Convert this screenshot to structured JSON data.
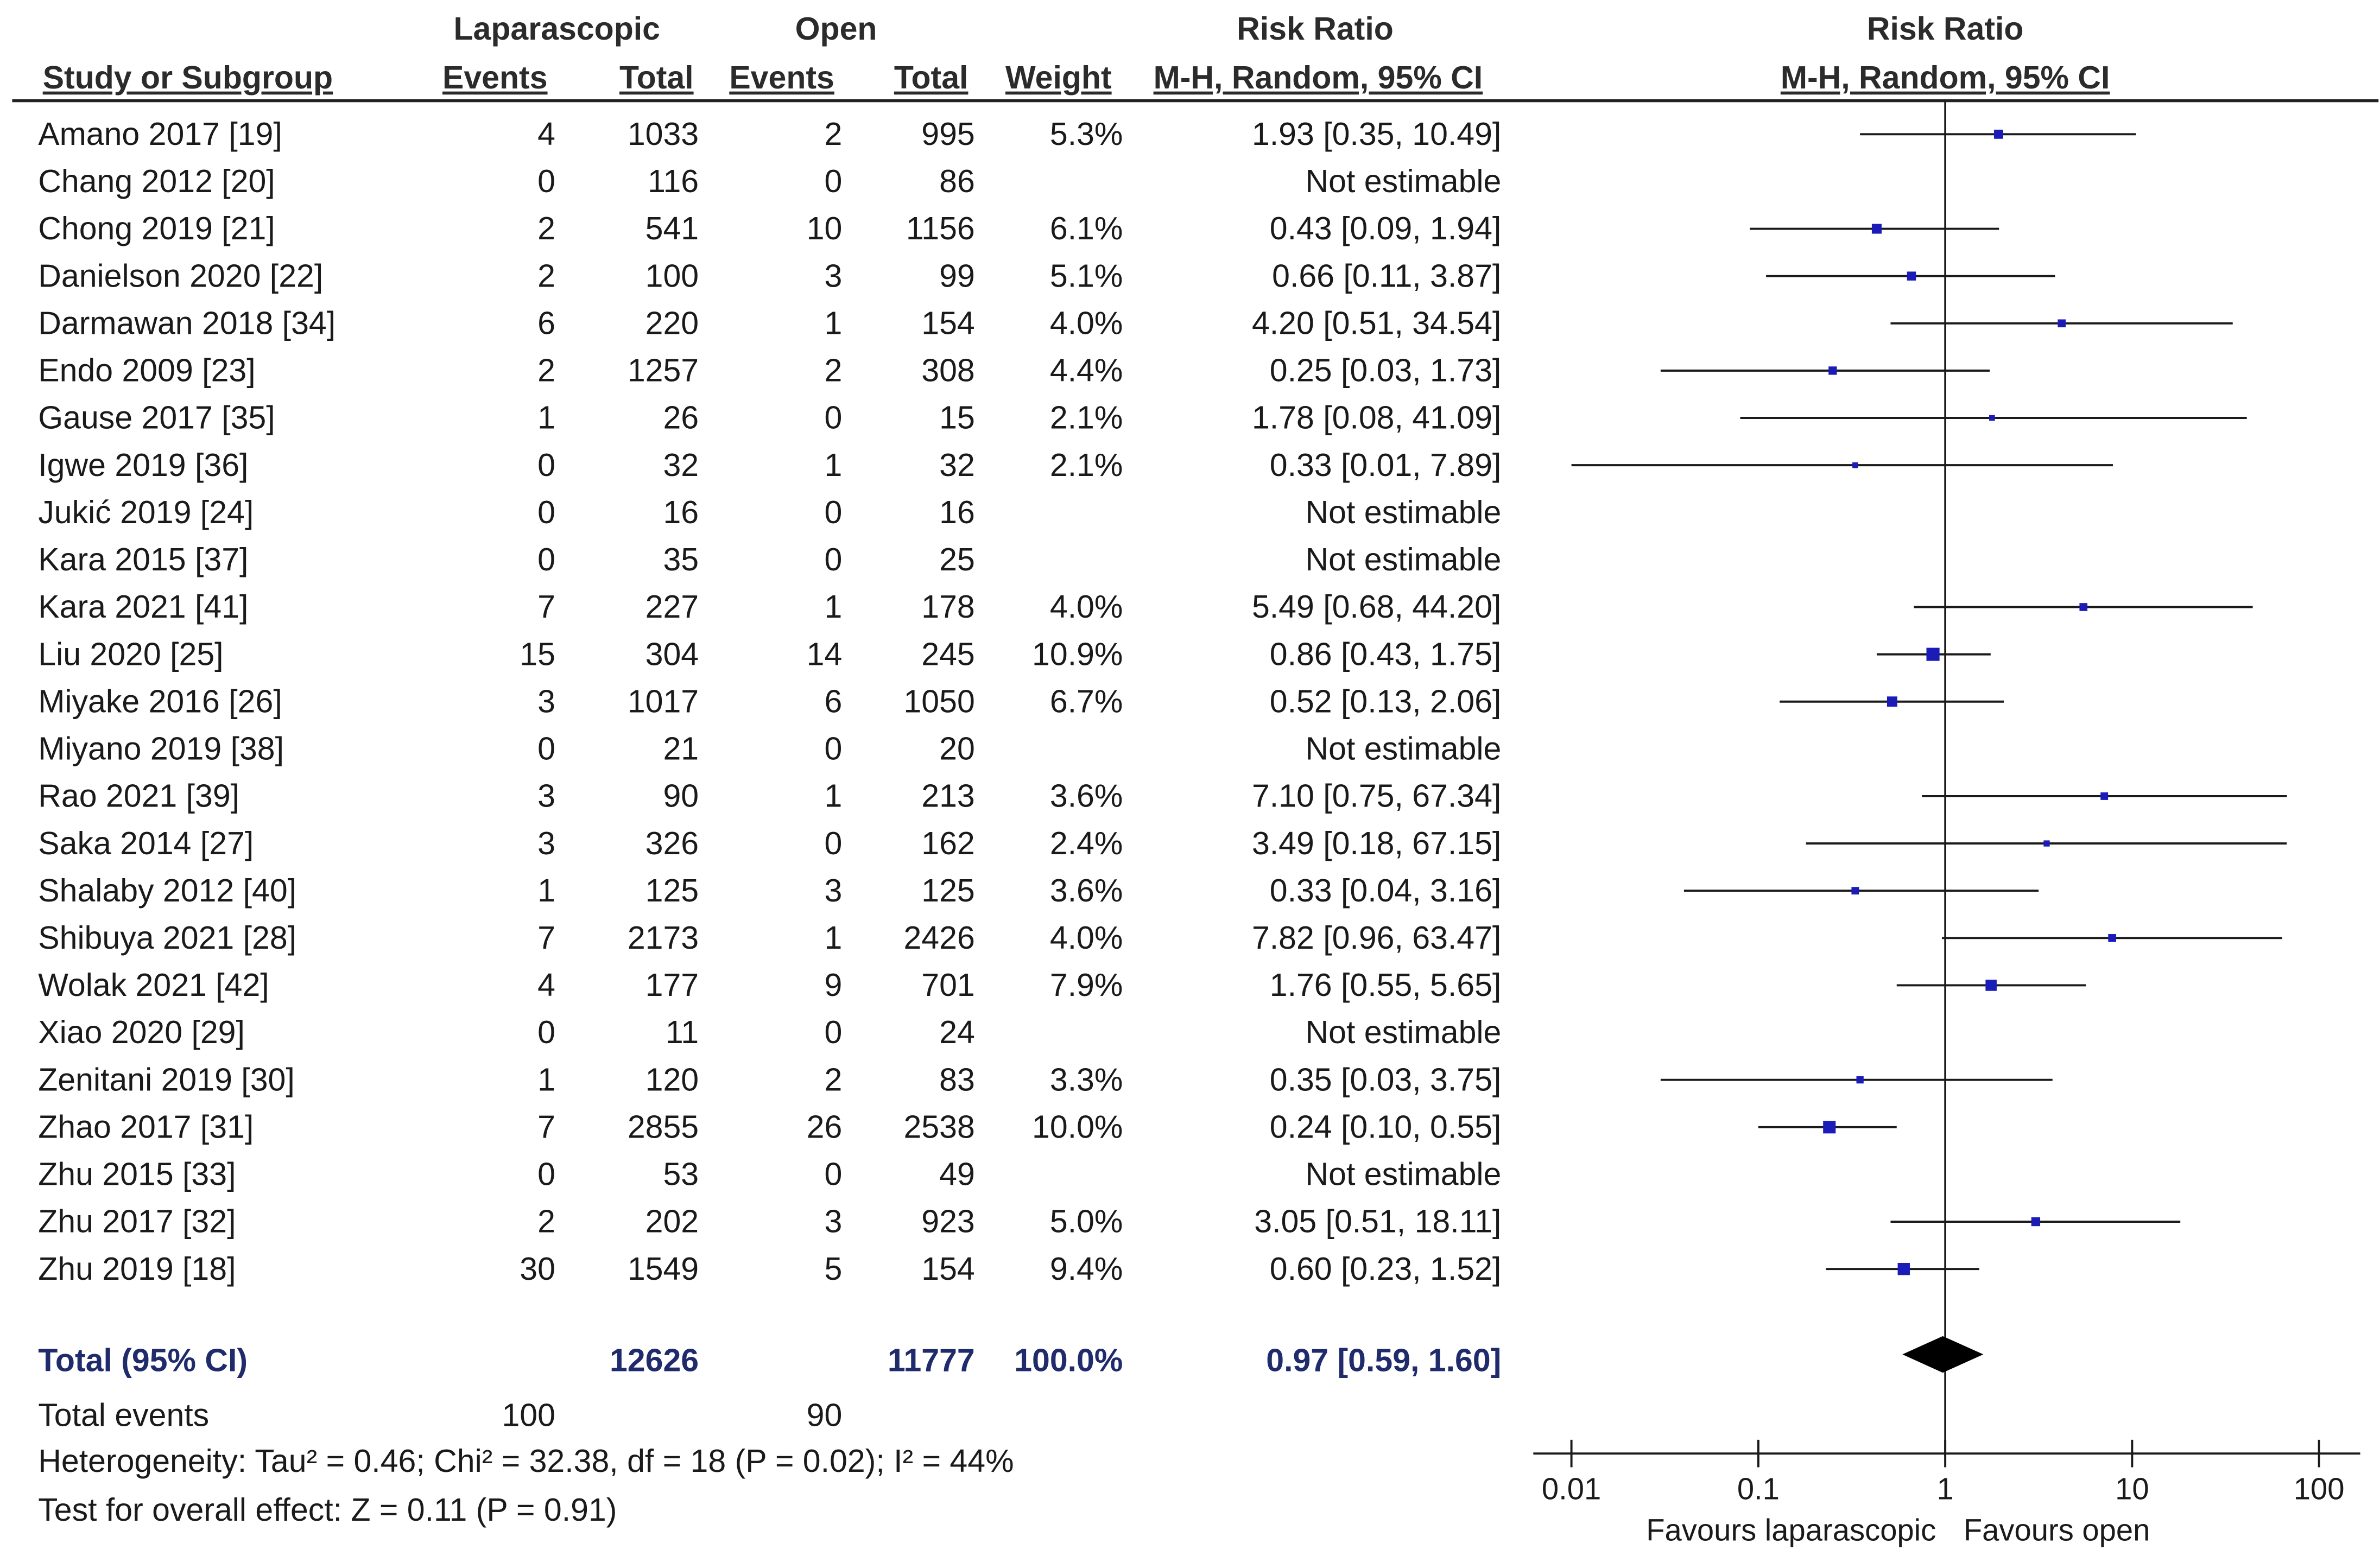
{
  "headers": {
    "study": "Study or Subgroup",
    "group1": "Laparascopic",
    "group2": "Open",
    "events": "Events",
    "total": "Total",
    "weight": "Weight",
    "rr_title": "Risk Ratio",
    "rr_method": "M-H, Random, 95% CI"
  },
  "studies": [
    {
      "study": "Amano 2017 [19]",
      "le": "4",
      "lt": "1033",
      "oe": "2",
      "ot": "995",
      "weight": "5.3%",
      "rr": "1.93 [0.35, 10.49]"
    },
    {
      "study": "Chang 2012 [20]",
      "le": "0",
      "lt": "116",
      "oe": "0",
      "ot": "86",
      "weight": "",
      "rr": "Not estimable"
    },
    {
      "study": "Chong 2019 [21]",
      "le": "2",
      "lt": "541",
      "oe": "10",
      "ot": "1156",
      "weight": "6.1%",
      "rr": "0.43 [0.09, 1.94]"
    },
    {
      "study": "Danielson 2020 [22]",
      "le": "2",
      "lt": "100",
      "oe": "3",
      "ot": "99",
      "weight": "5.1%",
      "rr": "0.66 [0.11, 3.87]"
    },
    {
      "study": "Darmawan 2018 [34]",
      "le": "6",
      "lt": "220",
      "oe": "1",
      "ot": "154",
      "weight": "4.0%",
      "rr": "4.20 [0.51, 34.54]"
    },
    {
      "study": "Endo 2009 [23]",
      "le": "2",
      "lt": "1257",
      "oe": "2",
      "ot": "308",
      "weight": "4.4%",
      "rr": "0.25 [0.03, 1.73]"
    },
    {
      "study": "Gause 2017 [35]",
      "le": "1",
      "lt": "26",
      "oe": "0",
      "ot": "15",
      "weight": "2.1%",
      "rr": "1.78 [0.08, 41.09]"
    },
    {
      "study": "Igwe 2019 [36]",
      "le": "0",
      "lt": "32",
      "oe": "1",
      "ot": "32",
      "weight": "2.1%",
      "rr": "0.33 [0.01, 7.89]"
    },
    {
      "study": "Jukić 2019 [24]",
      "le": "0",
      "lt": "16",
      "oe": "0",
      "ot": "16",
      "weight": "",
      "rr": "Not estimable"
    },
    {
      "study": "Kara 2015 [37]",
      "le": "0",
      "lt": "35",
      "oe": "0",
      "ot": "25",
      "weight": "",
      "rr": "Not estimable"
    },
    {
      "study": "Kara 2021 [41]",
      "le": "7",
      "lt": "227",
      "oe": "1",
      "ot": "178",
      "weight": "4.0%",
      "rr": "5.49 [0.68, 44.20]"
    },
    {
      "study": "Liu 2020 [25]",
      "le": "15",
      "lt": "304",
      "oe": "14",
      "ot": "245",
      "weight": "10.9%",
      "rr": "0.86 [0.43, 1.75]"
    },
    {
      "study": "Miyake 2016 [26]",
      "le": "3",
      "lt": "1017",
      "oe": "6",
      "ot": "1050",
      "weight": "6.7%",
      "rr": "0.52 [0.13, 2.06]"
    },
    {
      "study": "Miyano 2019 [38]",
      "le": "0",
      "lt": "21",
      "oe": "0",
      "ot": "20",
      "weight": "",
      "rr": "Not estimable"
    },
    {
      "study": "Rao 2021 [39]",
      "le": "3",
      "lt": "90",
      "oe": "1",
      "ot": "213",
      "weight": "3.6%",
      "rr": "7.10 [0.75, 67.34]"
    },
    {
      "study": "Saka 2014 [27]",
      "le": "3",
      "lt": "326",
      "oe": "0",
      "ot": "162",
      "weight": "2.4%",
      "rr": "3.49 [0.18, 67.15]"
    },
    {
      "study": "Shalaby 2012 [40]",
      "le": "1",
      "lt": "125",
      "oe": "3",
      "ot": "125",
      "weight": "3.6%",
      "rr": "0.33 [0.04, 3.16]"
    },
    {
      "study": "Shibuya 2021 [28]",
      "le": "7",
      "lt": "2173",
      "oe": "1",
      "ot": "2426",
      "weight": "4.0%",
      "rr": "7.82 [0.96, 63.47]"
    },
    {
      "study": "Wolak 2021 [42]",
      "le": "4",
      "lt": "177",
      "oe": "9",
      "ot": "701",
      "weight": "7.9%",
      "rr": "1.76 [0.55, 5.65]"
    },
    {
      "study": "Xiao 2020 [29]",
      "le": "0",
      "lt": "11",
      "oe": "0",
      "ot": "24",
      "weight": "",
      "rr": "Not estimable"
    },
    {
      "study": "Zenitani 2019 [30]",
      "le": "1",
      "lt": "120",
      "oe": "2",
      "ot": "83",
      "weight": "3.3%",
      "rr": "0.35 [0.03, 3.75]"
    },
    {
      "study": "Zhao 2017 [31]",
      "le": "7",
      "lt": "2855",
      "oe": "26",
      "ot": "2538",
      "weight": "10.0%",
      "rr": "0.24 [0.10, 0.55]"
    },
    {
      "study": "Zhu 2015 [33]",
      "le": "0",
      "lt": "53",
      "oe": "0",
      "ot": "49",
      "weight": "",
      "rr": "Not estimable"
    },
    {
      "study": "Zhu 2017 [32]",
      "le": "2",
      "lt": "202",
      "oe": "3",
      "ot": "923",
      "weight": "5.0%",
      "rr": "3.05 [0.51, 18.11]"
    },
    {
      "study": "Zhu 2019 [18]",
      "le": "30",
      "lt": "1549",
      "oe": "5",
      "ot": "154",
      "weight": "9.4%",
      "rr": "0.60 [0.23, 1.52]"
    }
  ],
  "total": {
    "label": "Total (95% CI)",
    "lap_total": "12626",
    "open_total": "11777",
    "weight": "100.0%",
    "rr": "0.97 [0.59, 1.60]"
  },
  "total_events": {
    "label": "Total events",
    "lap": "100",
    "open": "90"
  },
  "heterogeneity": "Heterogeneity: Tau² = 0.46; Chi² = 32.38, df = 18 (P = 0.02); I² = 44%",
  "overall_effect": "Test for overall effect: Z = 0.11 (P = 0.91)",
  "chart_data": {
    "type": "scatter",
    "title": "Risk Ratio",
    "subtitle": "M-H, Random, 95% CI",
    "xscale": "log",
    "xlim": [
      0.01,
      100
    ],
    "xticks": [
      0.01,
      0.1,
      1,
      10,
      100
    ],
    "xtick_labels": [
      "0.01",
      "0.1",
      "1",
      "10",
      "100"
    ],
    "reference_line": 1,
    "favours_left": "Favours laparascopic",
    "favours_right": "Favours open",
    "series": [
      {
        "name": "Amano 2017 [19]",
        "rr": 1.93,
        "lo": 0.35,
        "hi": 10.49,
        "weight": 5.3
      },
      {
        "name": "Chang 2012 [20]",
        "rr": null,
        "lo": null,
        "hi": null,
        "weight": 0
      },
      {
        "name": "Chong 2019 [21]",
        "rr": 0.43,
        "lo": 0.09,
        "hi": 1.94,
        "weight": 6.1
      },
      {
        "name": "Danielson 2020 [22]",
        "rr": 0.66,
        "lo": 0.11,
        "hi": 3.87,
        "weight": 5.1
      },
      {
        "name": "Darmawan 2018 [34]",
        "rr": 4.2,
        "lo": 0.51,
        "hi": 34.54,
        "weight": 4.0
      },
      {
        "name": "Endo 2009 [23]",
        "rr": 0.25,
        "lo": 0.03,
        "hi": 1.73,
        "weight": 4.4
      },
      {
        "name": "Gause 2017 [35]",
        "rr": 1.78,
        "lo": 0.08,
        "hi": 41.09,
        "weight": 2.1
      },
      {
        "name": "Igwe 2019 [36]",
        "rr": 0.33,
        "lo": 0.01,
        "hi": 7.89,
        "weight": 2.1
      },
      {
        "name": "Jukić 2019 [24]",
        "rr": null,
        "lo": null,
        "hi": null,
        "weight": 0
      },
      {
        "name": "Kara 2015 [37]",
        "rr": null,
        "lo": null,
        "hi": null,
        "weight": 0
      },
      {
        "name": "Kara 2021 [41]",
        "rr": 5.49,
        "lo": 0.68,
        "hi": 44.2,
        "weight": 4.0
      },
      {
        "name": "Liu 2020 [25]",
        "rr": 0.86,
        "lo": 0.43,
        "hi": 1.75,
        "weight": 10.9
      },
      {
        "name": "Miyake 2016 [26]",
        "rr": 0.52,
        "lo": 0.13,
        "hi": 2.06,
        "weight": 6.7
      },
      {
        "name": "Miyano 2019 [38]",
        "rr": null,
        "lo": null,
        "hi": null,
        "weight": 0
      },
      {
        "name": "Rao 2021 [39]",
        "rr": 7.1,
        "lo": 0.75,
        "hi": 67.34,
        "weight": 3.6
      },
      {
        "name": "Saka 2014 [27]",
        "rr": 3.49,
        "lo": 0.18,
        "hi": 67.15,
        "weight": 2.4
      },
      {
        "name": "Shalaby 2012 [40]",
        "rr": 0.33,
        "lo": 0.04,
        "hi": 3.16,
        "weight": 3.6
      },
      {
        "name": "Shibuya 2021 [28]",
        "rr": 7.82,
        "lo": 0.96,
        "hi": 63.47,
        "weight": 4.0
      },
      {
        "name": "Wolak 2021 [42]",
        "rr": 1.76,
        "lo": 0.55,
        "hi": 5.65,
        "weight": 7.9
      },
      {
        "name": "Xiao 2020 [29]",
        "rr": null,
        "lo": null,
        "hi": null,
        "weight": 0
      },
      {
        "name": "Zenitani 2019 [30]",
        "rr": 0.35,
        "lo": 0.03,
        "hi": 3.75,
        "weight": 3.3
      },
      {
        "name": "Zhao 2017 [31]",
        "rr": 0.24,
        "lo": 0.1,
        "hi": 0.55,
        "weight": 10.0
      },
      {
        "name": "Zhu 2015 [33]",
        "rr": null,
        "lo": null,
        "hi": null,
        "weight": 0
      },
      {
        "name": "Zhu 2017 [32]",
        "rr": 3.05,
        "lo": 0.51,
        "hi": 18.11,
        "weight": 5.0
      },
      {
        "name": "Zhu 2019 [18]",
        "rr": 0.6,
        "lo": 0.23,
        "hi": 1.52,
        "weight": 9.4
      }
    ],
    "pooled": {
      "rr": 0.97,
      "lo": 0.59,
      "hi": 1.6
    },
    "colors": {
      "marker": "#1b1bb8",
      "line": "#1a1a1a",
      "diamond": "#000000"
    }
  }
}
